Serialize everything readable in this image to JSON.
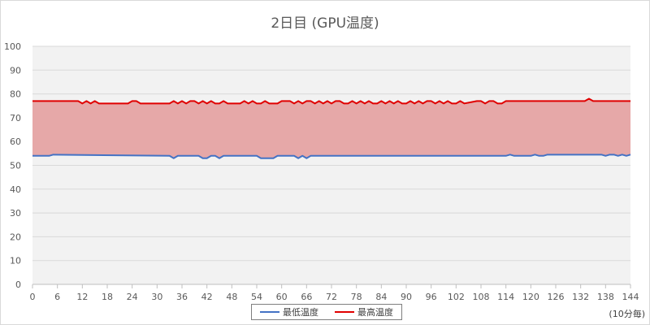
{
  "chart_data": {
    "type": "area",
    "title": "2日目 (GPU温度)",
    "x_unit_label": "(10分毎)",
    "xlim": [
      0,
      144
    ],
    "ylim": [
      0,
      100
    ],
    "x_ticks": [
      0,
      6,
      12,
      18,
      24,
      30,
      36,
      42,
      48,
      54,
      60,
      66,
      72,
      78,
      84,
      90,
      96,
      102,
      108,
      114,
      120,
      126,
      132,
      138,
      144
    ],
    "y_ticks": [
      0,
      10,
      20,
      30,
      40,
      50,
      60,
      70,
      80,
      90,
      100
    ],
    "grid": true,
    "legend_position": "bottom",
    "fill_between_series": true,
    "series": [
      {
        "name": "最低温度",
        "color": "#4472C4",
        "x": [
          0,
          4,
          5,
          33,
          34,
          35,
          40,
          41,
          42,
          43,
          44,
          45,
          46,
          54,
          55,
          58,
          59,
          63,
          64,
          65,
          66,
          67,
          114,
          115,
          116,
          120,
          121,
          122,
          123,
          124,
          125,
          137,
          138,
          139,
          140,
          141,
          142,
          143,
          144
        ],
        "values": [
          54,
          54,
          54.5,
          54,
          53,
          54,
          54,
          53,
          53,
          54,
          54,
          53,
          54,
          54,
          53,
          53,
          54,
          54,
          53,
          54,
          53,
          54,
          54,
          54.5,
          54,
          54,
          54.5,
          54,
          54,
          54.5,
          54.5,
          54.5,
          54,
          54.5,
          54.5,
          54,
          54.5,
          54,
          54.5
        ]
      },
      {
        "name": "最高温度",
        "color": "#E00000",
        "x": [
          0,
          11,
          12,
          13,
          14,
          15,
          16,
          23,
          24,
          25,
          26,
          33,
          34,
          35,
          36,
          37,
          38,
          39,
          40,
          41,
          42,
          43,
          44,
          45,
          46,
          47,
          48,
          49,
          50,
          51,
          52,
          53,
          54,
          55,
          56,
          57,
          58,
          59,
          60,
          61,
          62,
          63,
          64,
          65,
          66,
          67,
          68,
          69,
          70,
          71,
          72,
          73,
          74,
          75,
          76,
          77,
          78,
          79,
          80,
          81,
          82,
          83,
          84,
          85,
          86,
          87,
          88,
          89,
          90,
          91,
          92,
          93,
          94,
          95,
          96,
          97,
          98,
          99,
          100,
          101,
          102,
          103,
          104,
          107,
          108,
          109,
          110,
          111,
          112,
          113,
          114,
          133,
          134,
          135,
          144
        ],
        "values": [
          77,
          77,
          76,
          77,
          76,
          77,
          76,
          76,
          77,
          77,
          76,
          76,
          77,
          76,
          77,
          76,
          77,
          77,
          76,
          77,
          76,
          77,
          76,
          76,
          77,
          76,
          76,
          76,
          76,
          77,
          76,
          77,
          76,
          76,
          77,
          76,
          76,
          76,
          77,
          77,
          77,
          76,
          77,
          76,
          77,
          77,
          76,
          77,
          76,
          77,
          76,
          77,
          77,
          76,
          76,
          77,
          76,
          77,
          76,
          77,
          76,
          76,
          77,
          76,
          77,
          76,
          77,
          76,
          76,
          77,
          76,
          77,
          76,
          77,
          77,
          76,
          77,
          76,
          77,
          76,
          76,
          77,
          76,
          77,
          77,
          76,
          77,
          77,
          76,
          76,
          77,
          77,
          78,
          77,
          77
        ]
      }
    ],
    "fill_color": "#E6A8A8"
  }
}
